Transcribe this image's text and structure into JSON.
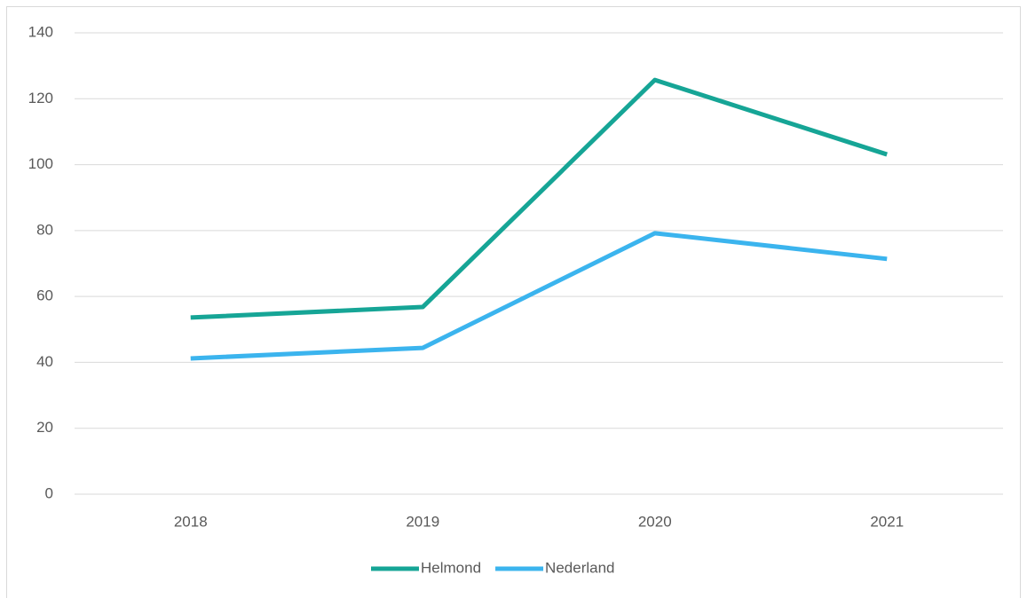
{
  "chart_data": {
    "type": "line",
    "categories": [
      "2018",
      "2019",
      "2020",
      "2021"
    ],
    "series": [
      {
        "name": "Helmond",
        "color": "#16a596",
        "values": [
          53.6,
          56.8,
          125.7,
          103.1
        ]
      },
      {
        "name": "Nederland",
        "color": "#3bb4ee",
        "values": [
          41.2,
          44.4,
          79.2,
          71.4
        ]
      }
    ],
    "ylim": [
      0,
      140
    ],
    "yticks": [
      0,
      20,
      40,
      60,
      80,
      100,
      120,
      140
    ],
    "grid": true,
    "legend": "bottom"
  }
}
